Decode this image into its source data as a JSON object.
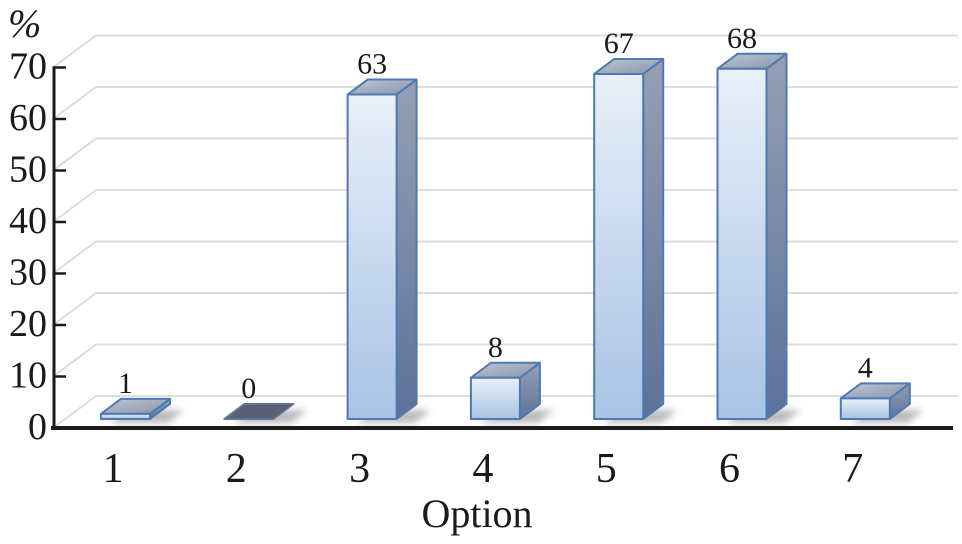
{
  "chart_data": {
    "type": "bar",
    "style": "3d-oblique",
    "title": "",
    "xlabel": "Option",
    "ylabel": "%",
    "categories": [
      "1",
      "2",
      "3",
      "4",
      "5",
      "6",
      "7"
    ],
    "values": [
      1,
      0,
      63,
      8,
      67,
      68,
      4
    ],
    "value_labels": [
      "1",
      "0",
      "63",
      "8",
      "67",
      "68",
      "4"
    ],
    "yticks": [
      0,
      10,
      20,
      30,
      40,
      50,
      60,
      70
    ],
    "ylim": [
      0,
      70
    ],
    "grid": true,
    "legend": false,
    "colors": {
      "bar_front_top": "#e9f0f9",
      "bar_front_bottom": "#a8c3e5",
      "bar_side_top": "#95a0b5",
      "bar_side_bottom": "#5d7199",
      "bar_top_light": "#bfc6d2",
      "bar_top_dark": "#8795ad",
      "bar_stroke": "#4e79b2",
      "zero_bar_fill": "#586274",
      "zero_bar_stroke": "#5f739b",
      "grid_line": "#d9d9d9",
      "axis_line": "#1a1a1a",
      "text": "#1a1a1a",
      "shadow": "rgba(105,105,105,0.45)",
      "background": "#ffffff"
    }
  }
}
